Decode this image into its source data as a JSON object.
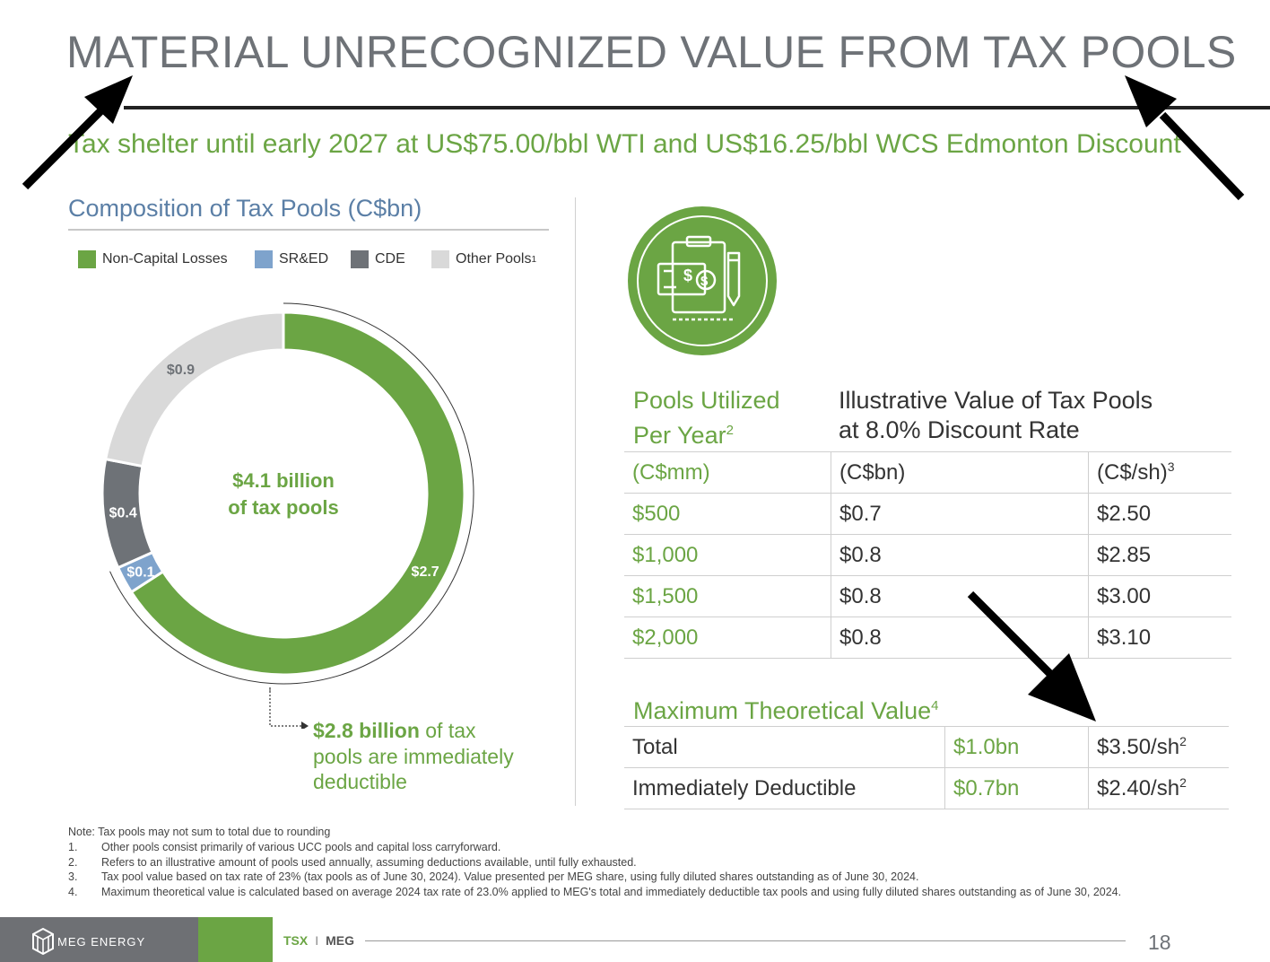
{
  "title": "MATERIAL UNRECOGNIZED VALUE FROM TAX POOLS",
  "subtitle": "Tax shelter until early 2027 at US$75.00/bbl WTI and US$16.25/bbl WCS Edmonton Discount",
  "composition": {
    "title": "Composition of Tax Pools (C$bn)",
    "legend": [
      {
        "label": "Non-Capital Losses",
        "color": "#6ba544"
      },
      {
        "label": "SR&ED",
        "color": "#7ea3cc"
      },
      {
        "label": "CDE",
        "color": "#6e7277"
      },
      {
        "label": "Other Pools",
        "footnote": "1",
        "color": "#d9d9d9"
      }
    ],
    "center_line1": "$4.1 billion",
    "center_line2": "of tax pools",
    "callout_bold": "$2.8 billion",
    "callout_rest1": " of tax",
    "callout_line2": "pools are immediately",
    "callout_line3": "deductible"
  },
  "chart_data": {
    "type": "pie",
    "categories": [
      "Non-Capital Losses",
      "SR&ED",
      "CDE",
      "Other Pools"
    ],
    "values": [
      2.7,
      0.1,
      0.4,
      0.9
    ],
    "labels": [
      "$2.7",
      "$0.1",
      "$0.4",
      "$0.9"
    ],
    "colors": [
      "#6ba544",
      "#7ea3cc",
      "#6e7277",
      "#d9d9d9"
    ],
    "title": "Composition of Tax Pools (C$bn)",
    "total_label": "$4.1 billion of tax pools"
  },
  "tax_table": {
    "head_col1_line1": "Pools Utilized",
    "head_col1_line2": "Per Year",
    "head_col1_sup": "2",
    "head_col2_line1": "Illustrative Value of Tax Pools",
    "head_col2_line2": "at 8.0% Discount Rate",
    "units": [
      "(C$mm)",
      "(C$bn)",
      "(C$/sh)"
    ],
    "units_sup": "3",
    "rows": [
      [
        "$500",
        "$0.7",
        "$2.50"
      ],
      [
        "$1,000",
        "$0.8",
        "$2.85"
      ],
      [
        "$1,500",
        "$0.8",
        "$3.00"
      ],
      [
        "$2,000",
        "$0.8",
        "$3.10"
      ]
    ]
  },
  "max_value": {
    "title": "Maximum Theoretical Value",
    "title_sup": "4",
    "rows": [
      {
        "label": "Total",
        "value": "$1.0bn",
        "per_share": "$3.50/sh",
        "sup": "2"
      },
      {
        "label": "Immediately  Deductible",
        "value": "$0.7bn",
        "per_share": "$2.40/sh",
        "sup": "2"
      }
    ]
  },
  "notes": {
    "intro": "Note: Tax pools may not sum to total due to rounding",
    "items": [
      {
        "num": "1.",
        "text": "Other pools consist primarily of various UCC pools and capital loss carryforward."
      },
      {
        "num": "2.",
        "text": "Refers to an illustrative amount of pools used annually, assuming deductions available, until fully exhausted."
      },
      {
        "num": "3.",
        "text": "Tax pool value based on tax rate of 23% (tax pools as of June 30, 2024). Value presented per MEG share, using fully diluted shares outstanding as of June 30, 2024."
      },
      {
        "num": "4.",
        "text": "Maximum theoretical value is calculated based on average 2024 tax rate of 23.0% applied to MEG's total and immediately deductible tax pools and using fully diluted shares outstanding as of June 30, 2024."
      }
    ]
  },
  "footer": {
    "company": "MEG ENERGY",
    "tsx": "TSX",
    "sep": "I",
    "ticker": "MEG",
    "page": "18"
  }
}
